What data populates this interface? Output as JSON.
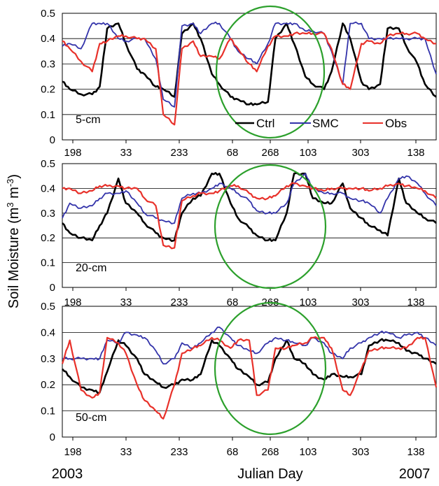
{
  "figure": {
    "ylabel": "Soil Moisture (m",
    "ylabel_sup1": "3",
    "ylabel_mid": " m",
    "ylabel_sup2": "-3",
    "ylabel_end": ")",
    "xlabel": "Julian Day",
    "year_start": "2003",
    "year_end": "2007"
  },
  "legend": {
    "ctrl": "Ctrl",
    "smc": "SMC",
    "obs": "Obs"
  },
  "colors": {
    "ctrl": "#000000",
    "smc": "#3333aa",
    "obs": "#e8312a",
    "highlight": "#2ca02c",
    "grid": "#000000"
  },
  "chart_data": [
    {
      "type": "line",
      "depth_label": "5-cm",
      "ylim": [
        0,
        0.5
      ],
      "yticks": [
        "0",
        "0.1",
        "0.2",
        "0.3",
        "0.4",
        "0.5"
      ],
      "xticks": [
        "198",
        "33",
        "233",
        "68",
        "268",
        "103",
        "303",
        "138"
      ],
      "grid": "horizontal",
      "legend": "bottom-right",
      "x": [
        0,
        0.02,
        0.05,
        0.08,
        0.1,
        0.12,
        0.15,
        0.17,
        0.2,
        0.22,
        0.25,
        0.27,
        0.3,
        0.32,
        0.35,
        0.37,
        0.4,
        0.42,
        0.45,
        0.47,
        0.5,
        0.52,
        0.55,
        0.57,
        0.6,
        0.62,
        0.65,
        0.67,
        0.7,
        0.72,
        0.75,
        0.77,
        0.8,
        0.82,
        0.85,
        0.87,
        0.9,
        0.92,
        0.95,
        0.97,
        1.0
      ],
      "series": [
        {
          "name": "Ctrl",
          "values": [
            0.23,
            0.2,
            0.18,
            0.18,
            0.21,
            0.44,
            0.46,
            0.38,
            0.28,
            0.26,
            0.21,
            0.2,
            0.17,
            0.42,
            0.46,
            0.4,
            0.26,
            0.22,
            0.17,
            0.16,
            0.14,
            0.14,
            0.15,
            0.4,
            0.46,
            0.38,
            0.25,
            0.22,
            0.2,
            0.27,
            0.46,
            0.4,
            0.23,
            0.2,
            0.22,
            0.44,
            0.44,
            0.37,
            0.3,
            0.22,
            0.17
          ]
        },
        {
          "name": "SMC",
          "values": [
            0.37,
            0.38,
            0.36,
            0.46,
            0.46,
            0.46,
            0.4,
            0.39,
            0.4,
            0.4,
            0.32,
            0.16,
            0.13,
            0.45,
            0.46,
            0.42,
            0.46,
            0.46,
            0.4,
            0.35,
            0.32,
            0.3,
            0.38,
            0.46,
            0.46,
            0.46,
            0.43,
            0.43,
            0.42,
            0.35,
            0.22,
            0.46,
            0.46,
            0.4,
            0.4,
            0.4,
            0.4,
            0.4,
            0.4,
            0.4,
            0.26
          ]
        },
        {
          "name": "Obs",
          "values": [
            0.39,
            0.36,
            0.31,
            0.27,
            0.38,
            0.39,
            0.41,
            0.41,
            0.4,
            0.4,
            0.36,
            0.1,
            0.06,
            0.36,
            0.39,
            0.33,
            0.33,
            0.32,
            0.4,
            0.36,
            0.3,
            0.27,
            0.37,
            0.41,
            0.41,
            0.42,
            0.42,
            0.42,
            0.42,
            0.36,
            0.22,
            0.2,
            0.38,
            0.39,
            0.38,
            0.41,
            0.42,
            0.42,
            0.42,
            0.4,
            0.38
          ]
        }
      ]
    },
    {
      "type": "line",
      "depth_label": "20-cm",
      "ylim": [
        0,
        0.5
      ],
      "yticks": [
        "0",
        "0.1",
        "0.2",
        "0.3",
        "0.4",
        "0.5"
      ],
      "xticks": [
        "198",
        "33",
        "233",
        "68",
        "268",
        "103",
        "303",
        "138"
      ],
      "grid": "horizontal",
      "x": [
        0,
        0.02,
        0.05,
        0.08,
        0.1,
        0.12,
        0.15,
        0.17,
        0.2,
        0.22,
        0.25,
        0.27,
        0.3,
        0.32,
        0.35,
        0.37,
        0.4,
        0.42,
        0.45,
        0.47,
        0.5,
        0.52,
        0.55,
        0.57,
        0.6,
        0.62,
        0.65,
        0.67,
        0.7,
        0.72,
        0.75,
        0.77,
        0.8,
        0.82,
        0.85,
        0.87,
        0.9,
        0.92,
        0.95,
        0.97,
        1.0
      ],
      "series": [
        {
          "name": "Ctrl",
          "values": [
            0.26,
            0.22,
            0.2,
            0.19,
            0.25,
            0.3,
            0.44,
            0.34,
            0.3,
            0.26,
            0.22,
            0.2,
            0.19,
            0.3,
            0.36,
            0.37,
            0.46,
            0.46,
            0.34,
            0.28,
            0.24,
            0.21,
            0.19,
            0.19,
            0.3,
            0.46,
            0.46,
            0.36,
            0.34,
            0.34,
            0.42,
            0.32,
            0.28,
            0.25,
            0.23,
            0.21,
            0.44,
            0.34,
            0.3,
            0.28,
            0.26
          ]
        },
        {
          "name": "SMC",
          "values": [
            0.28,
            0.34,
            0.32,
            0.33,
            0.36,
            0.38,
            0.38,
            0.39,
            0.34,
            0.3,
            0.28,
            0.27,
            0.26,
            0.36,
            0.38,
            0.38,
            0.4,
            0.42,
            0.4,
            0.38,
            0.35,
            0.31,
            0.3,
            0.3,
            0.34,
            0.42,
            0.46,
            0.4,
            0.38,
            0.38,
            0.38,
            0.36,
            0.35,
            0.34,
            0.3,
            0.36,
            0.44,
            0.45,
            0.42,
            0.38,
            0.33
          ]
        },
        {
          "name": "Obs",
          "values": [
            0.4,
            0.4,
            0.38,
            0.39,
            0.41,
            0.41,
            0.41,
            0.4,
            0.4,
            0.36,
            0.33,
            0.17,
            0.16,
            0.35,
            0.37,
            0.38,
            0.38,
            0.39,
            0.41,
            0.41,
            0.38,
            0.36,
            0.36,
            0.37,
            0.41,
            0.42,
            0.41,
            0.4,
            0.39,
            0.4,
            0.4,
            0.4,
            0.4,
            0.39,
            0.4,
            0.41,
            0.42,
            0.41,
            0.4,
            0.39,
            0.36
          ]
        }
      ]
    },
    {
      "type": "line",
      "depth_label": "50-cm",
      "ylim": [
        0,
        0.5
      ],
      "yticks": [
        "0",
        "0.1",
        "0.2",
        "0.3",
        "0.4",
        "0.5"
      ],
      "xticks": [
        "198",
        "33",
        "233",
        "68",
        "268",
        "103",
        "303",
        "138"
      ],
      "grid": "horizontal",
      "x": [
        0,
        0.02,
        0.05,
        0.08,
        0.1,
        0.12,
        0.15,
        0.17,
        0.2,
        0.22,
        0.25,
        0.27,
        0.3,
        0.32,
        0.35,
        0.37,
        0.4,
        0.42,
        0.45,
        0.47,
        0.5,
        0.52,
        0.55,
        0.57,
        0.6,
        0.62,
        0.65,
        0.67,
        0.7,
        0.72,
        0.75,
        0.77,
        0.8,
        0.82,
        0.85,
        0.87,
        0.9,
        0.92,
        0.95,
        0.97,
        1.0
      ],
      "series": [
        {
          "name": "Ctrl",
          "values": [
            0.26,
            0.23,
            0.19,
            0.18,
            0.17,
            0.25,
            0.37,
            0.35,
            0.3,
            0.24,
            0.21,
            0.19,
            0.2,
            0.22,
            0.22,
            0.24,
            0.37,
            0.35,
            0.3,
            0.26,
            0.23,
            0.2,
            0.21,
            0.3,
            0.37,
            0.3,
            0.28,
            0.24,
            0.22,
            0.24,
            0.23,
            0.23,
            0.24,
            0.35,
            0.37,
            0.37,
            0.36,
            0.33,
            0.32,
            0.3,
            0.28
          ]
        },
        {
          "name": "SMC",
          "values": [
            0.3,
            0.3,
            0.3,
            0.3,
            0.3,
            0.37,
            0.36,
            0.4,
            0.39,
            0.38,
            0.33,
            0.28,
            0.3,
            0.36,
            0.34,
            0.36,
            0.4,
            0.42,
            0.38,
            0.35,
            0.33,
            0.32,
            0.36,
            0.38,
            0.37,
            0.36,
            0.35,
            0.38,
            0.36,
            0.32,
            0.3,
            0.34,
            0.36,
            0.38,
            0.4,
            0.4,
            0.38,
            0.39,
            0.4,
            0.38,
            0.35
          ]
        },
        {
          "name": "Obs",
          "values": [
            0.28,
            0.37,
            0.18,
            0.15,
            0.17,
            0.38,
            0.36,
            0.32,
            0.2,
            0.14,
            0.1,
            0.07,
            0.2,
            0.32,
            0.34,
            0.35,
            0.38,
            0.37,
            0.34,
            0.37,
            0.37,
            0.16,
            0.18,
            0.34,
            0.34,
            0.35,
            0.36,
            0.38,
            0.38,
            0.34,
            0.18,
            0.16,
            0.26,
            0.33,
            0.34,
            0.34,
            0.34,
            0.34,
            0.38,
            0.38,
            0.19
          ]
        }
      ]
    }
  ]
}
